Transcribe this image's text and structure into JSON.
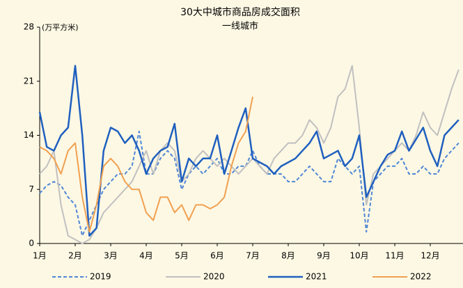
{
  "chart_data": {
    "type": "line",
    "title": "30大中城市商品房成交面积",
    "subtitle": "一线城市",
    "y_label": "(万平方米)",
    "categories": [
      "1月",
      null,
      null,
      null,
      null,
      "2月",
      null,
      null,
      null,
      null,
      "3月",
      null,
      null,
      null,
      null,
      "4月",
      null,
      null,
      null,
      null,
      "5月",
      null,
      null,
      null,
      null,
      "6月",
      null,
      null,
      null,
      null,
      "7月",
      null,
      null,
      null,
      null,
      "8月",
      null,
      null,
      null,
      null,
      "9月",
      null,
      null,
      null,
      null,
      "10月",
      null,
      null,
      null,
      null,
      "11月",
      null,
      null,
      null,
      null,
      "12月",
      null,
      null,
      null,
      null
    ],
    "ylim": [
      0,
      28
    ],
    "yticks": [
      0,
      7,
      14,
      21,
      28
    ],
    "grid": false,
    "legend": "bottom",
    "series": [
      {
        "name": "2019",
        "color": "#4f86d6",
        "style": "dashed",
        "values": [
          6.5,
          7.5,
          8,
          7.5,
          6,
          5,
          1,
          3,
          5,
          7,
          8,
          9,
          9,
          10,
          14.5,
          9,
          9,
          11,
          12,
          11,
          7,
          9,
          10,
          9,
          10,
          11,
          9,
          9,
          10,
          10,
          12,
          10,
          9,
          9,
          9,
          8,
          8,
          9,
          10,
          9,
          8,
          8,
          11,
          10,
          9,
          10,
          1.5,
          8,
          9,
          10,
          10,
          11,
          9,
          9,
          10,
          9,
          9,
          11,
          12,
          13
        ]
      },
      {
        "name": "2020",
        "color": "#c0c0c0",
        "style": "solid",
        "values": [
          9,
          10,
          12,
          5,
          1,
          0.5,
          0,
          0.5,
          2,
          4,
          5,
          6,
          7,
          8,
          10,
          12,
          9,
          12,
          13,
          12,
          8,
          9,
          11,
          12,
          11,
          10,
          11,
          10,
          9,
          10,
          11,
          10,
          9,
          11,
          12,
          13,
          13,
          14,
          16,
          15,
          13,
          15,
          19,
          20,
          23,
          15,
          5,
          9,
          10,
          11,
          12,
          13,
          12,
          14,
          17,
          15,
          14,
          17,
          20,
          22.5
        ]
      },
      {
        "name": "2021",
        "color": "#1f5fbf",
        "style": "solid",
        "values": [
          17,
          12.5,
          12,
          14,
          15,
          23,
          14,
          1,
          2,
          12,
          15,
          14.5,
          13,
          14,
          12,
          9,
          11,
          12,
          12.5,
          15.5,
          8,
          11,
          10,
          11,
          11,
          14,
          9,
          12,
          15,
          17.5,
          11,
          10.5,
          10,
          9,
          10,
          10.5,
          11,
          12,
          13,
          14.5,
          11,
          11.5,
          12,
          10,
          11,
          14,
          6,
          8,
          10,
          11.5,
          12,
          14.5,
          12,
          13.5,
          15,
          12,
          10,
          14,
          15,
          16
        ]
      },
      {
        "name": "2022",
        "color": "#f0a050",
        "style": "solid",
        "values": [
          12.5,
          12,
          11,
          9,
          12,
          13,
          6,
          1.5,
          5,
          10,
          11,
          10,
          8,
          7,
          7,
          4,
          3,
          6,
          6,
          4,
          5,
          3,
          5,
          5,
          4.5,
          5,
          6,
          10,
          13,
          14.5,
          19,
          null,
          null,
          null,
          null,
          null,
          null,
          null,
          null,
          null,
          null,
          null,
          null,
          null,
          null,
          null,
          null,
          null,
          null,
          null,
          null,
          null,
          null,
          null,
          null,
          null,
          null,
          null,
          null,
          null
        ]
      }
    ]
  }
}
